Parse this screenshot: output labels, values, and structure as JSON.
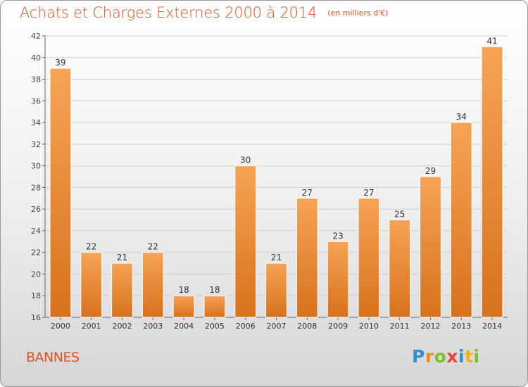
{
  "header": {
    "title": "Achats et Charges Externes 2000 à 2014",
    "subtitle": "(en milliers d'€)"
  },
  "footer": {
    "place": "BANNES",
    "logo_text": "Proxiti"
  },
  "colors": {
    "title": "#e0521f",
    "bar_light": "#f6a455",
    "bar_dark": "#d8711c",
    "grid": "#cfcfcf"
  },
  "chart_data": {
    "type": "bar",
    "title": "Achats et Charges Externes 2000 à 2014",
    "subtitle": "(en milliers d'€)",
    "categories": [
      "2000",
      "2001",
      "2002",
      "2003",
      "2004",
      "2005",
      "2006",
      "2007",
      "2008",
      "2009",
      "2010",
      "2011",
      "2012",
      "2013",
      "2014"
    ],
    "values": [
      39,
      22,
      21,
      22,
      18,
      18,
      30,
      21,
      27,
      23,
      27,
      25,
      29,
      34,
      41
    ],
    "data_labels": [
      "39",
      "22",
      "21",
      "22",
      "18",
      "18",
      "30",
      "21",
      "27",
      "23",
      "27",
      "25",
      "29",
      "34",
      "41"
    ],
    "ylim": [
      16,
      42
    ],
    "yticks": [
      16,
      18,
      20,
      22,
      24,
      26,
      28,
      30,
      32,
      34,
      36,
      38,
      40,
      42
    ],
    "ytick_labels": [
      "16",
      "18",
      "20",
      "22",
      "24",
      "26",
      "28",
      "30",
      "32",
      "34",
      "36",
      "38",
      "40",
      "42"
    ],
    "xlabel": "",
    "ylabel": "",
    "grid": true,
    "legend": "none"
  }
}
